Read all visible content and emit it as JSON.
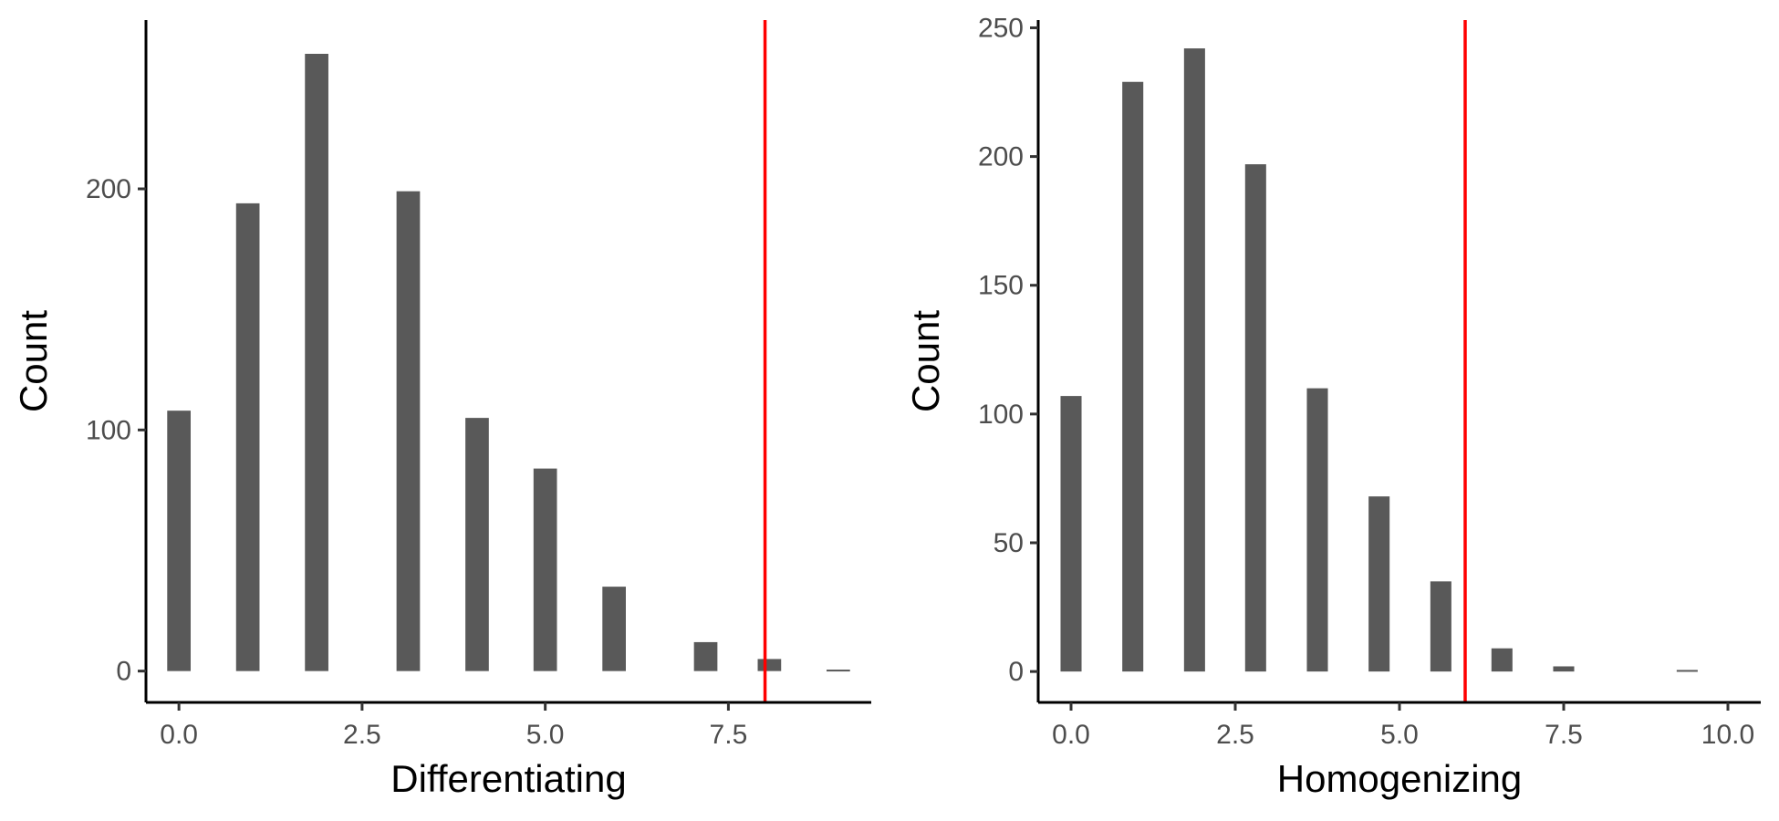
{
  "chart_data": [
    {
      "type": "bar",
      "title": "",
      "xlabel": "Differentiating",
      "ylabel": "Count",
      "xlim": [
        -0.45,
        9.45
      ],
      "ylim": [
        -13,
        270
      ],
      "x_ticks": [
        0,
        2.5,
        5,
        7.5
      ],
      "x_tick_labels": [
        "0.0",
        "2.5",
        "5.0",
        "7.5"
      ],
      "y_ticks": [
        0,
        100,
        200
      ],
      "y_tick_labels": [
        "0",
        "100",
        "200"
      ],
      "bar_width": 0.32,
      "bars": [
        {
          "x": 0,
          "y": 108
        },
        {
          "x": 0.94,
          "y": 194
        },
        {
          "x": 1.88,
          "y": 256
        },
        {
          "x": 3.13,
          "y": 199
        },
        {
          "x": 4.07,
          "y": 105
        },
        {
          "x": 5.0,
          "y": 84
        },
        {
          "x": 5.94,
          "y": 35
        },
        {
          "x": 7.19,
          "y": 12
        },
        {
          "x": 8.06,
          "y": 5
        },
        {
          "x": 9.0,
          "y": 0.6
        }
      ],
      "vline": {
        "x": 8,
        "color": "#ff0000"
      },
      "grid": false,
      "bar_color": "#595959"
    },
    {
      "type": "bar",
      "title": "",
      "xlabel": "Homogenizing",
      "ylabel": "Count",
      "xlim": [
        -0.5,
        10.5
      ],
      "ylim": [
        -12,
        253
      ],
      "x_ticks": [
        0,
        2.5,
        5,
        7.5,
        10
      ],
      "x_tick_labels": [
        "0.0",
        "2.5",
        "5.0",
        "7.5",
        "10.0"
      ],
      "y_ticks": [
        0,
        50,
        100,
        150,
        200,
        250
      ],
      "y_tick_labels": [
        "0",
        "50",
        "100",
        "150",
        "200",
        "250"
      ],
      "bar_width": 0.32,
      "bars": [
        {
          "x": 0,
          "y": 107
        },
        {
          "x": 0.94,
          "y": 229
        },
        {
          "x": 1.88,
          "y": 242
        },
        {
          "x": 2.81,
          "y": 197
        },
        {
          "x": 3.75,
          "y": 110
        },
        {
          "x": 4.69,
          "y": 68
        },
        {
          "x": 5.63,
          "y": 35
        },
        {
          "x": 6.56,
          "y": 9
        },
        {
          "x": 7.5,
          "y": 2
        },
        {
          "x": 9.38,
          "y": 0.6
        }
      ],
      "vline": {
        "x": 6,
        "color": "#ff0000"
      },
      "grid": false,
      "bar_color": "#595959"
    }
  ]
}
